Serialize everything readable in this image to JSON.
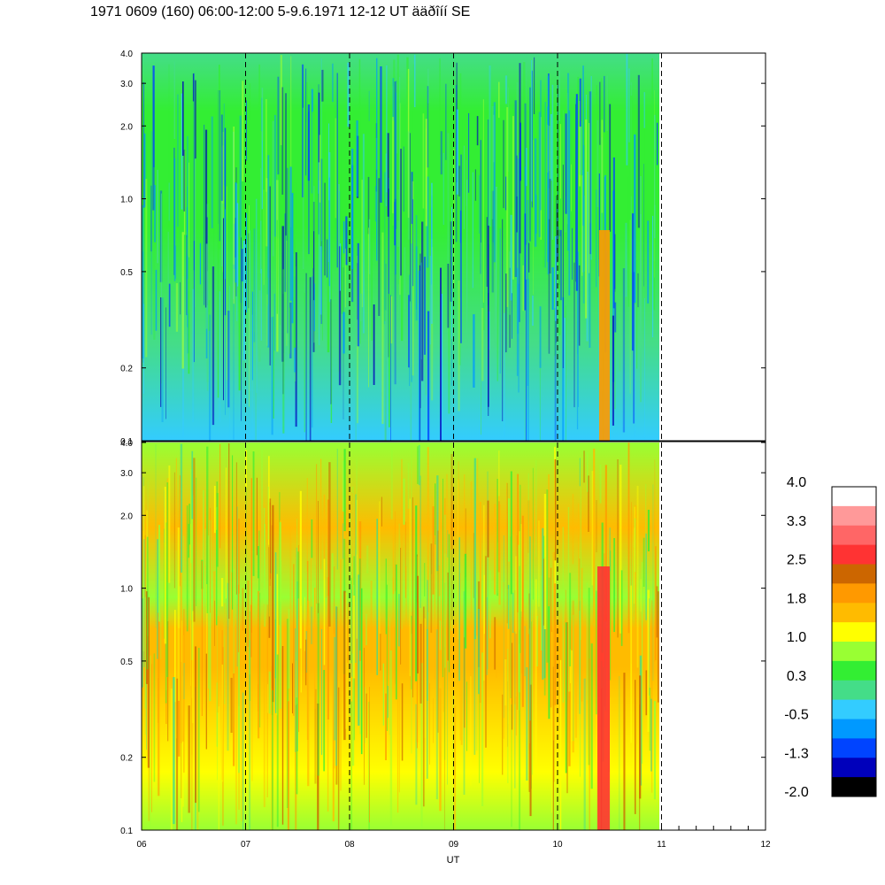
{
  "title": "1971 0609 (160) 06:00-12:00 5-9.6.1971  12-12 UT ääðîíí SE",
  "chart_data": {
    "type": "heatmap",
    "panels": [
      {
        "name": "",
        "y_ticks": [
          "0.1",
          "0.2",
          "0.5",
          "1.0",
          "2.0",
          "3.0",
          "4.0"
        ],
        "y_values": [
          0.1,
          0.2,
          0.5,
          1.0,
          2.0,
          3.0,
          4.0
        ],
        "y_scale": "log",
        "ylim": [
          0.1,
          4.0
        ]
      },
      {
        "name": "",
        "y_ticks": [
          "0.1",
          "0.2",
          "0.5",
          "1.0",
          "2.0",
          "3.0",
          "4.0"
        ],
        "y_values": [
          0.1,
          0.2,
          0.5,
          1.0,
          2.0,
          3.0,
          4.0
        ],
        "y_scale": "log",
        "ylim": [
          0.1,
          4.0
        ]
      }
    ],
    "x_ticks": [
      "06",
      "07",
      "08",
      "09",
      "10",
      "11",
      "12"
    ],
    "x_values": [
      6,
      7,
      8,
      9,
      10,
      11,
      12
    ],
    "xlim": [
      6,
      12
    ],
    "xlabel": "UT",
    "data_end": 11,
    "vlines": [
      7,
      8,
      9,
      10,
      11
    ],
    "colorbar": {
      "labels": [
        "4.0",
        "3.3",
        "2.5",
        "1.8",
        "1.0",
        "0.3",
        "-0.5",
        "-1.3",
        "-2.0"
      ],
      "colors": [
        "#ffffff",
        "#ff9999",
        "#ff6666",
        "#ff3333",
        "#cc6600",
        "#ff9900",
        "#ffbb00",
        "#ffff00",
        "#99ff33",
        "#33ee33",
        "#44dd88",
        "#33ccff",
        "#0099ff",
        "#0044ff",
        "#0000bb",
        "#000000"
      ]
    }
  }
}
